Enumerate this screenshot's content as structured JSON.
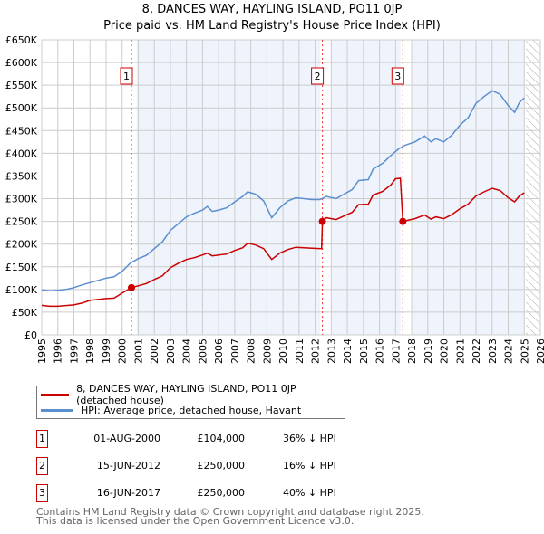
{
  "chart_data": {
    "type": "line",
    "title": "8, DANCES WAY, HAYLING ISLAND, PO11 0JP",
    "subtitle": "Price paid vs. HM Land Registry's House Price Index (HPI)",
    "xlim": [
      1995,
      2026
    ],
    "ylim": [
      0,
      650000
    ],
    "x_ticks": [
      "1995",
      "1996",
      "1997",
      "1998",
      "1999",
      "2000",
      "2001",
      "2002",
      "2003",
      "2004",
      "2005",
      "2006",
      "2007",
      "2008",
      "2009",
      "2010",
      "2011",
      "2012",
      "2013",
      "2014",
      "2015",
      "2016",
      "2017",
      "2018",
      "2019",
      "2020",
      "2021",
      "2022",
      "2023",
      "2024",
      "2025",
      "2026"
    ],
    "y_ticks": [
      "£0",
      "£50K",
      "£100K",
      "£150K",
      "£200K",
      "£250K",
      "£300K",
      "£350K",
      "£400K",
      "£450K",
      "£500K",
      "£550K",
      "£600K",
      "£650K"
    ],
    "grid": true,
    "series": [
      {
        "name": "8, DANCES WAY, HAYLING ISLAND, PO11 0JP (detached house)",
        "color": "#cc0000",
        "x": [
          1995,
          1995.5,
          1996,
          1997,
          1997.5,
          1998,
          1998.5,
          1999,
          1999.5,
          2000,
          2000.58,
          2001,
          2001.5,
          2002,
          2002.5,
          2003,
          2003.5,
          2004,
          2004.5,
          2005,
          2005.3,
          2005.6,
          2006,
          2006.5,
          2007,
          2007.5,
          2007.8,
          2008.3,
          2008.8,
          2009.3,
          2009.8,
          2010.3,
          2010.8,
          2011.3,
          2011.8,
          2012.4,
          2012.45,
          2012.7,
          2013.3,
          2013.8,
          2014.3,
          2014.7,
          2015.3,
          2015.6,
          2016.2,
          2016.7,
          2017.0,
          2017.3,
          2017.45,
          2018.2,
          2018.8,
          2019.2,
          2019.5,
          2020,
          2020.5,
          2021,
          2021.5,
          2022,
          2022.5,
          2023,
          2023.5,
          2024,
          2024.4,
          2024.7,
          2025
        ],
        "y": [
          65,
          63,
          63,
          66,
          70,
          76,
          78,
          80,
          81,
          92,
          104,
          108,
          113,
          122,
          130,
          148,
          158,
          166,
          170,
          176,
          180,
          174,
          176,
          178,
          186,
          192,
          202,
          198,
          190,
          166,
          180,
          188,
          193,
          192,
          191,
          190,
          250,
          258,
          254,
          262,
          270,
          287,
          288,
          308,
          316,
          330,
          344,
          345,
          250,
          256,
          264,
          255,
          260,
          256,
          265,
          278,
          288,
          306,
          315,
          323,
          318,
          302,
          293,
          306,
          313
        ]
      },
      {
        "name": "HPI: Average price, detached house, Havant",
        "color": "#5b8fd0",
        "x": [
          1995,
          1995.5,
          1996,
          1996.5,
          1997,
          1997.5,
          1998,
          1998.5,
          1999,
          1999.5,
          2000,
          2000.5,
          2001,
          2001.5,
          2002,
          2002.5,
          2003,
          2003.5,
          2004,
          2004.5,
          2005,
          2005.3,
          2005.6,
          2006,
          2006.5,
          2007,
          2007.5,
          2007.8,
          2008.3,
          2008.8,
          2009.3,
          2009.8,
          2010.3,
          2010.8,
          2011.3,
          2011.8,
          2012.3,
          2012.7,
          2013.3,
          2013.8,
          2014.3,
          2014.7,
          2015.3,
          2015.6,
          2016.2,
          2016.7,
          2017.2,
          2017.6,
          2018.2,
          2018.8,
          2019.2,
          2019.5,
          2020,
          2020.5,
          2021,
          2021.5,
          2022,
          2022.5,
          2023,
          2023.5,
          2024,
          2024.4,
          2024.7,
          2025
        ],
        "y": [
          99,
          97,
          98,
          100,
          104,
          110,
          115,
          120,
          125,
          128,
          140,
          158,
          168,
          175,
          190,
          205,
          230,
          245,
          260,
          268,
          275,
          283,
          272,
          275,
          280,
          293,
          305,
          315,
          310,
          295,
          258,
          280,
          295,
          302,
          300,
          298,
          298,
          305,
          300,
          310,
          320,
          340,
          342,
          365,
          378,
          395,
          410,
          418,
          425,
          438,
          425,
          432,
          425,
          440,
          462,
          478,
          510,
          525,
          538,
          530,
          505,
          490,
          512,
          522
        ]
      }
    ],
    "y_unit": "thousand GBP",
    "sales": [
      {
        "label": "1",
        "x": 2000.58,
        "y": 104
      },
      {
        "label": "2",
        "x": 2012.45,
        "y": 250
      },
      {
        "label": "3",
        "x": 2017.45,
        "y": 250
      }
    ]
  },
  "legend": {
    "items": [
      "8, DANCES WAY, HAYLING ISLAND, PO11 0JP (detached house)",
      "HPI: Average price, detached house, Havant"
    ]
  },
  "table": [
    {
      "num": "1",
      "date": "01-AUG-2000",
      "price": "£104,000",
      "hpi": "36% ↓ HPI"
    },
    {
      "num": "2",
      "date": "15-JUN-2012",
      "price": "£250,000",
      "hpi": "16% ↓ HPI"
    },
    {
      "num": "3",
      "date": "16-JUN-2017",
      "price": "£250,000",
      "hpi": "40% ↓ HPI"
    }
  ],
  "footer": {
    "line1": "Contains HM Land Registry data © Crown copyright and database right 2025.",
    "line2": "This data is licensed under the Open Government Licence v3.0."
  }
}
